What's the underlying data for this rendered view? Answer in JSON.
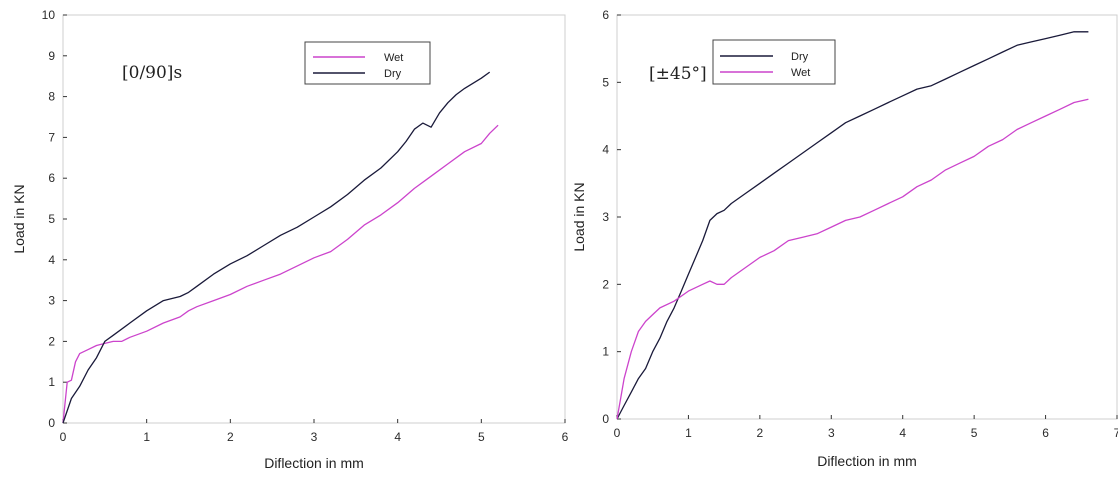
{
  "chart_data": [
    {
      "type": "line",
      "annotation": "[0/90]s",
      "xlabel": "Diflection in mm",
      "ylabel": "Load in KN",
      "xlim": [
        0,
        6
      ],
      "ylim": [
        0,
        10
      ],
      "xticks": [
        0,
        1,
        2,
        3,
        4,
        5,
        6
      ],
      "yticks": [
        0,
        1,
        2,
        3,
        4,
        5,
        6,
        7,
        8,
        9,
        10
      ],
      "grid": false,
      "legend_position": "top-center",
      "colors": {
        "Wet": "#cc44cc",
        "Dry": "#1a1a3a"
      },
      "series": [
        {
          "name": "Wet",
          "x": [
            0,
            0.05,
            0.1,
            0.15,
            0.2,
            0.3,
            0.4,
            0.5,
            0.6,
            0.7,
            0.8,
            1.0,
            1.2,
            1.4,
            1.5,
            1.6,
            1.8,
            2.0,
            2.2,
            2.4,
            2.6,
            2.8,
            3.0,
            3.2,
            3.4,
            3.6,
            3.8,
            4.0,
            4.2,
            4.4,
            4.6,
            4.8,
            5.0,
            5.1,
            5.2
          ],
          "y": [
            0,
            1.0,
            1.05,
            1.5,
            1.7,
            1.8,
            1.9,
            1.95,
            2.0,
            2.0,
            2.1,
            2.25,
            2.45,
            2.6,
            2.75,
            2.85,
            3.0,
            3.15,
            3.35,
            3.5,
            3.65,
            3.85,
            4.05,
            4.2,
            4.5,
            4.85,
            5.1,
            5.4,
            5.75,
            6.05,
            6.35,
            6.65,
            6.85,
            7.1,
            7.3
          ]
        },
        {
          "name": "Dry",
          "x": [
            0,
            0.1,
            0.2,
            0.3,
            0.4,
            0.5,
            0.6,
            0.8,
            1.0,
            1.2,
            1.4,
            1.5,
            1.6,
            1.8,
            2.0,
            2.2,
            2.4,
            2.6,
            2.8,
            3.0,
            3.2,
            3.4,
            3.6,
            3.8,
            4.0,
            4.1,
            4.2,
            4.3,
            4.4,
            4.5,
            4.6,
            4.7,
            4.8,
            5.0,
            5.1
          ],
          "y": [
            0,
            0.6,
            0.9,
            1.3,
            1.6,
            2.0,
            2.15,
            2.45,
            2.75,
            3.0,
            3.1,
            3.2,
            3.35,
            3.65,
            3.9,
            4.1,
            4.35,
            4.6,
            4.8,
            5.05,
            5.3,
            5.6,
            5.95,
            6.25,
            6.65,
            6.9,
            7.2,
            7.35,
            7.25,
            7.6,
            7.85,
            8.05,
            8.2,
            8.45,
            8.6
          ]
        }
      ]
    },
    {
      "type": "line",
      "annotation": "[±45°]",
      "xlabel": "Diflection in mm",
      "ylabel": "Load in KN",
      "xlim": [
        0,
        7
      ],
      "ylim": [
        0,
        6
      ],
      "xticks": [
        0,
        1,
        2,
        3,
        4,
        5,
        6,
        7
      ],
      "yticks": [
        0,
        1,
        2,
        3,
        4,
        5,
        6
      ],
      "grid": false,
      "legend_position": "top-left",
      "colors": {
        "Dry": "#1a1a3a",
        "Wet": "#cc44cc"
      },
      "series": [
        {
          "name": "Dry",
          "x": [
            0,
            0.1,
            0.2,
            0.3,
            0.4,
            0.5,
            0.6,
            0.7,
            0.8,
            0.9,
            1.0,
            1.1,
            1.2,
            1.3,
            1.4,
            1.5,
            1.6,
            1.8,
            2.0,
            2.2,
            2.4,
            2.6,
            2.8,
            3.0,
            3.2,
            3.4,
            3.6,
            3.8,
            4.0,
            4.2,
            4.4,
            4.6,
            4.8,
            5.0,
            5.2,
            5.4,
            5.6,
            5.8,
            6.0,
            6.2,
            6.4,
            6.6
          ],
          "y": [
            0,
            0.2,
            0.4,
            0.6,
            0.75,
            1.0,
            1.2,
            1.45,
            1.65,
            1.9,
            2.15,
            2.4,
            2.65,
            2.95,
            3.05,
            3.1,
            3.2,
            3.35,
            3.5,
            3.65,
            3.8,
            3.95,
            4.1,
            4.25,
            4.4,
            4.5,
            4.6,
            4.7,
            4.8,
            4.9,
            4.95,
            5.05,
            5.15,
            5.25,
            5.35,
            5.45,
            5.55,
            5.6,
            5.65,
            5.7,
            5.75,
            5.75
          ]
        },
        {
          "name": "Wet",
          "x": [
            0,
            0.05,
            0.1,
            0.2,
            0.3,
            0.4,
            0.5,
            0.6,
            0.8,
            1.0,
            1.2,
            1.3,
            1.4,
            1.5,
            1.6,
            1.8,
            2.0,
            2.2,
            2.4,
            2.6,
            2.8,
            3.0,
            3.2,
            3.4,
            3.6,
            3.8,
            4.0,
            4.2,
            4.4,
            4.6,
            4.8,
            5.0,
            5.2,
            5.4,
            5.6,
            5.8,
            6.0,
            6.2,
            6.4,
            6.6
          ],
          "y": [
            0,
            0.3,
            0.6,
            1.0,
            1.3,
            1.45,
            1.55,
            1.65,
            1.75,
            1.9,
            2.0,
            2.05,
            2.0,
            2.0,
            2.1,
            2.25,
            2.4,
            2.5,
            2.65,
            2.7,
            2.75,
            2.85,
            2.95,
            3.0,
            3.1,
            3.2,
            3.3,
            3.45,
            3.55,
            3.7,
            3.8,
            3.9,
            4.05,
            4.15,
            4.3,
            4.4,
            4.5,
            4.6,
            4.7,
            4.75
          ]
        }
      ]
    }
  ]
}
